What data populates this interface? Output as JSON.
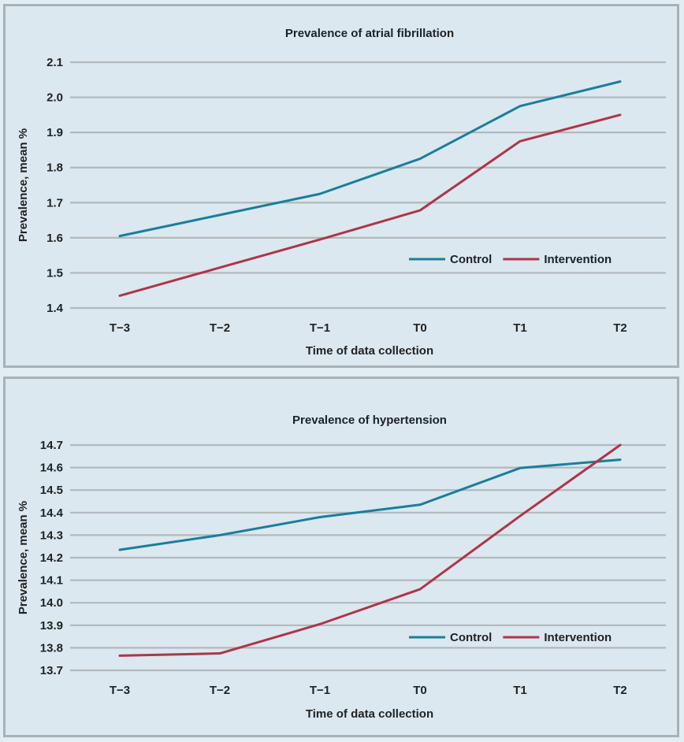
{
  "chart_data": [
    {
      "type": "line",
      "title": "Prevalence of atrial fibrillation",
      "xlabel": "Time of data collection",
      "ylabel": "Prevalence, mean %",
      "categories": [
        "T−3",
        "T−2",
        "T−1",
        "T0",
        "T1",
        "T2"
      ],
      "ylim": [
        1.4,
        2.1
      ],
      "yticks": [
        "1.4",
        "1.5",
        "1.6",
        "1.7",
        "1.8",
        "1.9",
        "2.0",
        "2.1"
      ],
      "grid": true,
      "legend_position": "lower-right",
      "series": [
        {
          "name": "Control",
          "color": "#1a7e9c",
          "values": [
            1.605,
            1.665,
            1.725,
            1.825,
            1.975,
            2.045
          ]
        },
        {
          "name": "Intervention",
          "color": "#b0344a",
          "values": [
            1.435,
            1.515,
            1.595,
            1.678,
            1.875,
            1.95
          ]
        }
      ]
    },
    {
      "type": "line",
      "title": "Prevalence of hypertension",
      "xlabel": "Time of data collection",
      "ylabel": "Prevalence, mean %",
      "categories": [
        "T−3",
        "T−2",
        "T−1",
        "T0",
        "T1",
        "T2"
      ],
      "ylim": [
        13.7,
        14.7
      ],
      "yticks": [
        "13.7",
        "13.8",
        "13.9",
        "14.0",
        "14.1",
        "14.2",
        "14.3",
        "14.4",
        "14.5",
        "14.6",
        "14.7"
      ],
      "grid": true,
      "legend_position": "lower-right",
      "series": [
        {
          "name": "Control",
          "color": "#1a7e9c",
          "values": [
            14.235,
            14.3,
            14.38,
            14.435,
            14.598,
            14.635
          ]
        },
        {
          "name": "Intervention",
          "color": "#b0344a",
          "values": [
            13.765,
            13.775,
            13.905,
            14.06,
            14.385,
            14.7
          ]
        }
      ]
    }
  ]
}
